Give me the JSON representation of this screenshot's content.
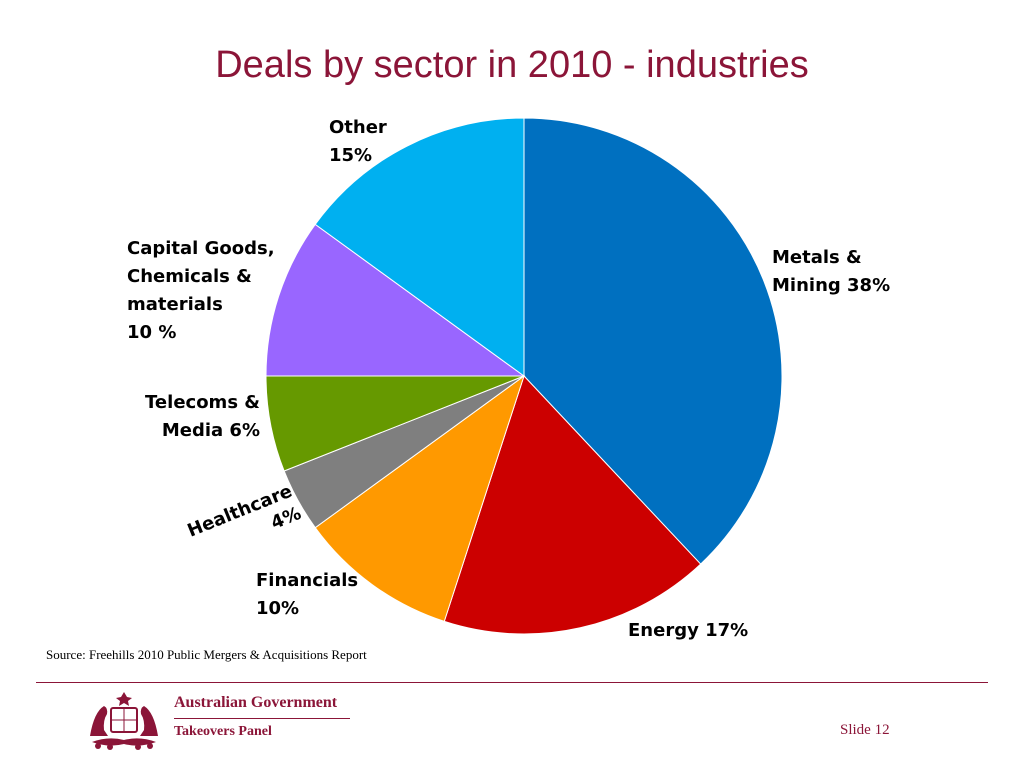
{
  "slide": {
    "title": "Deals by sector in 2010 - industries",
    "source": "Source: Freehills 2010 Public Mergers & Acquisitions Report",
    "footer": {
      "org_line1": "Australian Government",
      "org_line2": "Takeovers Panel",
      "slide_label": "Slide 12"
    },
    "colors": {
      "title": "#8b1538",
      "rule": "#8b1538"
    }
  },
  "chart_data": {
    "type": "pie",
    "title": "Deals by sector in 2010 - industries",
    "start_angle": "12 o'clock",
    "direction": "clockwise",
    "slices": [
      {
        "key": "metals",
        "label": [
          "Metals &",
          "Mining 38%"
        ],
        "value": 38,
        "color": "#0070c0"
      },
      {
        "key": "energy",
        "label": [
          "Energy 17%"
        ],
        "value": 17,
        "color": "#cc0000"
      },
      {
        "key": "financials",
        "label": [
          "Financials",
          "10%"
        ],
        "value": 10,
        "color": "#ff9900"
      },
      {
        "key": "healthcare",
        "label": [
          "Healthcare",
          "4%"
        ],
        "value": 4,
        "color": "#7f7f7f"
      },
      {
        "key": "telecoms",
        "label": [
          "Telecoms &",
          "Media 6%"
        ],
        "value": 6,
        "color": "#669900"
      },
      {
        "key": "capital",
        "label": [
          "Capital Goods,",
          "Chemicals &",
          "materials",
          "10 %"
        ],
        "value": 10,
        "color": "#9966ff"
      },
      {
        "key": "other",
        "label": [
          "Other",
          "15%"
        ],
        "value": 15,
        "color": "#00b0f0"
      }
    ]
  }
}
